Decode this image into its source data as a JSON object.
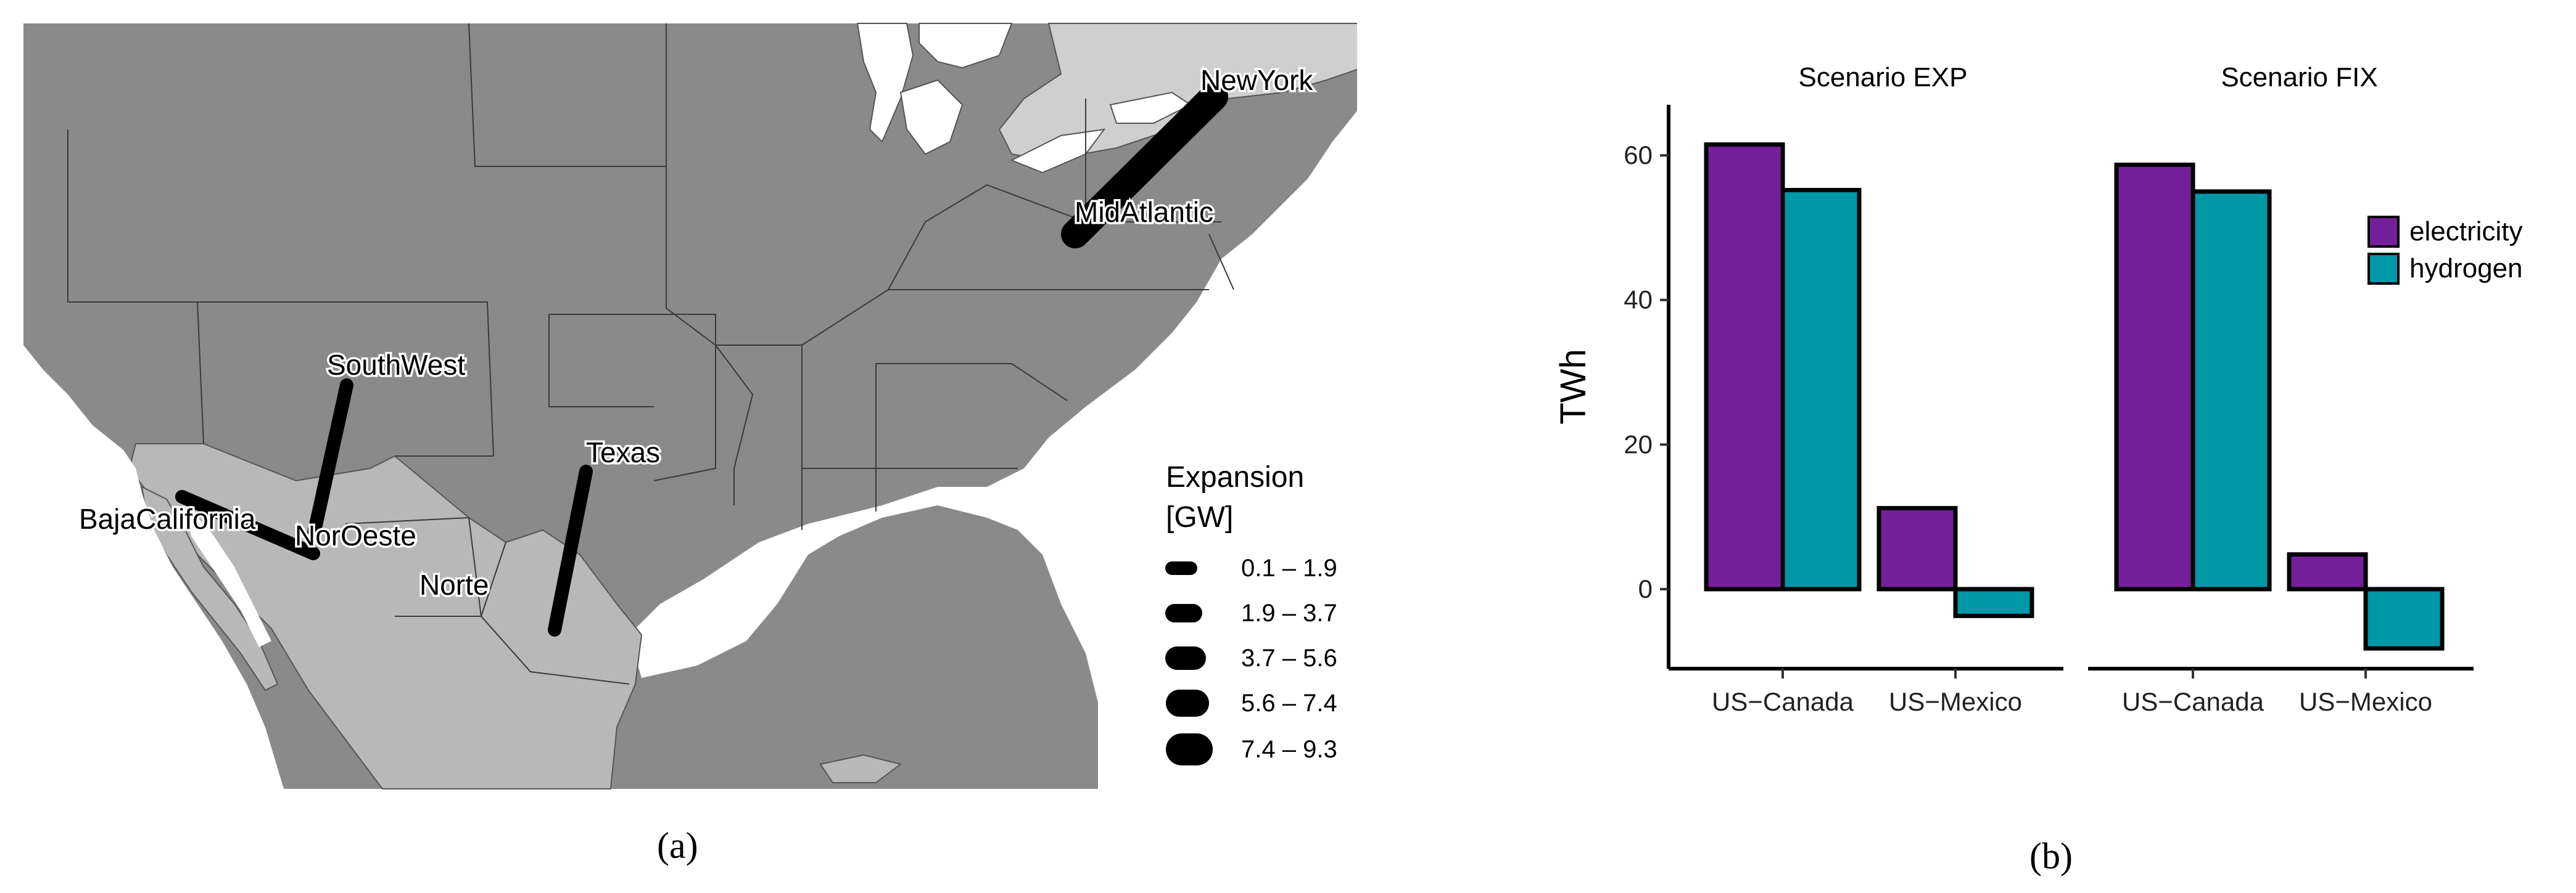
{
  "panel_a": {
    "caption": "(a)",
    "regions": {
      "new_york": "NewYork",
      "mid_atlantic": "MidAtlantic",
      "south_west": "SouthWest",
      "texas": "Texas",
      "baja_california": "BajaCalifornia",
      "nor_oeste": "NorOeste",
      "norte": "Norte"
    },
    "legend": {
      "title_line1": "Expansion",
      "title_line2": "[GW]",
      "ranges": [
        "0.1 – 1.9",
        "1.9 – 3.7",
        "3.7 – 5.6",
        "5.6 – 7.4",
        "7.4 – 9.3"
      ]
    },
    "colors": {
      "us_land": "#8a8a8a",
      "mexico_land": "#b8b8b8",
      "canada_land": "#cfcfcf",
      "water": "#ffffff",
      "lines": "#000000"
    }
  },
  "panel_b": {
    "caption": "(b)",
    "legend": [
      "electricity",
      "hydrogen"
    ]
  },
  "chart_data": {
    "type": "bar",
    "ylabel": "TWh",
    "xlabel": "",
    "ylim": [
      -11,
      67
    ],
    "yticks": [
      0,
      20,
      40,
      60
    ],
    "categories": [
      "US−Canada",
      "US−Mexico"
    ],
    "facets": [
      {
        "title": "Scenario EXP",
        "series": [
          {
            "name": "electricity",
            "values": [
              61.5,
              11.2
            ]
          },
          {
            "name": "hydrogen",
            "values": [
              55.2,
              -3.7
            ]
          }
        ]
      },
      {
        "title": "Scenario FIX",
        "series": [
          {
            "name": "electricity",
            "values": [
              58.7,
              4.8
            ]
          },
          {
            "name": "hydrogen",
            "values": [
              55.0,
              -8.2
            ]
          }
        ]
      }
    ],
    "colors": {
      "electricity": "#75209b",
      "hydrogen": "#0097a7"
    },
    "legend_position": "right"
  }
}
